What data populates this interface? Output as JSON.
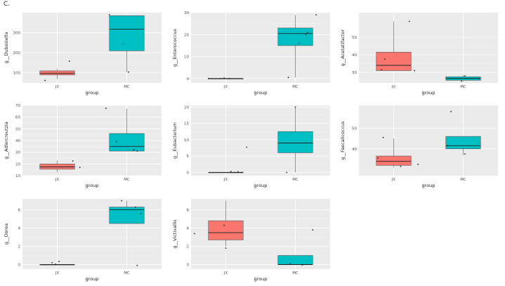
{
  "panel_label": "C.",
  "colors": {
    "JX": "#f8766d",
    "MC": "#00bfc4"
  },
  "chart_data": [
    {
      "type": "box",
      "title": "",
      "xlabel": "group",
      "ylabel": "g__Dubosiella",
      "categories": [
        "JX",
        "MC"
      ],
      "ylim": [
        50,
        400
      ],
      "yticks": [
        100,
        200,
        300
      ],
      "boxes": [
        {
          "group": "JX",
          "min": 70,
          "q1": 90,
          "median": 98,
          "q3": 110,
          "max": 120
        },
        {
          "group": "MC",
          "min": 105,
          "q1": 210,
          "median": 318,
          "q3": 385,
          "max": 385
        }
      ],
      "points": [
        {
          "group": "JX",
          "offset": -0.35,
          "y": 62
        },
        {
          "group": "JX",
          "offset": 0.35,
          "y": 158
        },
        {
          "group": "MC",
          "offset": -0.5,
          "y": 390
        },
        {
          "group": "MC",
          "offset": -0.1,
          "y": 245
        },
        {
          "group": "MC",
          "offset": 0.05,
          "y": 104
        }
      ]
    },
    {
      "type": "box",
      "title": "",
      "xlabel": "group",
      "ylabel": "g__Enterococcus",
      "categories": [
        "JX",
        "MC"
      ],
      "ylim": [
        -2,
        30
      ],
      "yticks": [
        0,
        10,
        20,
        30
      ],
      "boxes": [
        {
          "group": "JX",
          "min": 0,
          "q1": 0,
          "median": 0,
          "q3": 0,
          "max": 0
        },
        {
          "group": "MC",
          "min": 0.5,
          "q1": 15,
          "median": 20.5,
          "q3": 23,
          "max": 29
        }
      ],
      "points": [
        {
          "group": "JX",
          "offset": -0.5,
          "y": 0
        },
        {
          "group": "JX",
          "offset": -0.15,
          "y": 0
        },
        {
          "group": "JX",
          "offset": -0.05,
          "y": 0.2
        },
        {
          "group": "JX",
          "offset": 0.1,
          "y": 0
        },
        {
          "group": "MC",
          "offset": -0.2,
          "y": 0.5
        },
        {
          "group": "MC",
          "offset": 0.1,
          "y": 16
        },
        {
          "group": "MC",
          "offset": 0.3,
          "y": 20
        },
        {
          "group": "MC",
          "offset": 0.35,
          "y": 21
        },
        {
          "group": "MC",
          "offset": 0.6,
          "y": 29
        }
      ]
    },
    {
      "type": "box",
      "title": "",
      "xlabel": "group",
      "ylabel": "g__Acetatifactor",
      "categories": [
        "JX",
        "MC"
      ],
      "ylim": [
        24,
        64
      ],
      "yticks": [
        30,
        40,
        50
      ],
      "boxes": [
        {
          "group": "JX",
          "min": 31,
          "q1": 31,
          "median": 34,
          "q3": 41.5,
          "max": 59
        },
        {
          "group": "MC",
          "min": 25,
          "q1": 25.5,
          "median": 26.5,
          "q3": 27.5,
          "max": 28.5
        }
      ],
      "points": [
        {
          "group": "JX",
          "offset": -0.35,
          "y": 31.5
        },
        {
          "group": "JX",
          "offset": -0.25,
          "y": 37.5
        },
        {
          "group": "JX",
          "offset": 0.45,
          "y": 59
        },
        {
          "group": "JX",
          "offset": 0.6,
          "y": 31
        },
        {
          "group": "MC",
          "offset": -0.05,
          "y": 25
        },
        {
          "group": "MC",
          "offset": 0.05,
          "y": 28
        }
      ]
    },
    {
      "type": "box",
      "title": "",
      "xlabel": "group",
      "ylabel": "g__Adlercreutzia",
      "categories": [
        "JX",
        "MC"
      ],
      "ylim": [
        10,
        70
      ],
      "yticks": [
        10,
        20,
        30,
        40,
        50,
        60,
        70
      ],
      "boxes": [
        {
          "group": "JX",
          "min": 13,
          "q1": 15.5,
          "median": 17.5,
          "q3": 20,
          "max": 23
        },
        {
          "group": "MC",
          "min": 31,
          "q1": 31,
          "median": 35,
          "q3": 46,
          "max": 67
        }
      ],
      "points": [
        {
          "group": "JX",
          "offset": 0.45,
          "y": 22.5
        },
        {
          "group": "JX",
          "offset": 0.65,
          "y": 17
        },
        {
          "group": "MC",
          "offset": -0.6,
          "y": 67.5
        },
        {
          "group": "MC",
          "offset": -0.3,
          "y": 39
        },
        {
          "group": "MC",
          "offset": 0.2,
          "y": 32
        },
        {
          "group": "MC",
          "offset": 0.3,
          "y": 31
        }
      ]
    },
    {
      "type": "box",
      "title": "",
      "xlabel": "group",
      "ylabel": "g__Eubacterium",
      "categories": [
        "JX",
        "MC"
      ],
      "ylim": [
        -1,
        20.5
      ],
      "yticks": [
        0,
        5,
        10,
        15,
        20
      ],
      "boxes": [
        {
          "group": "JX",
          "min": 0,
          "q1": 0,
          "median": 0,
          "q3": 0,
          "max": 0
        },
        {
          "group": "MC",
          "min": 0,
          "q1": 6,
          "median": 9,
          "q3": 12.5,
          "max": 20
        }
      ],
      "points": [
        {
          "group": "JX",
          "offset": 0.15,
          "y": 0.3
        },
        {
          "group": "JX",
          "offset": 0.25,
          "y": 0
        },
        {
          "group": "JX",
          "offset": 0.35,
          "y": 0.2
        },
        {
          "group": "JX",
          "offset": 0.45,
          "y": 0
        },
        {
          "group": "JX",
          "offset": 0.6,
          "y": 7.7
        },
        {
          "group": "MC",
          "offset": -0.25,
          "y": 0
        },
        {
          "group": "MC",
          "offset": 0.0,
          "y": 20
        }
      ]
    },
    {
      "type": "box",
      "title": "",
      "xlabel": "group",
      "ylabel": "g__Faecalicoccus",
      "categories": [
        "JX",
        "MC"
      ],
      "ylim": [
        27,
        61
      ],
      "yticks": [
        40,
        50
      ],
      "boxes": [
        {
          "group": "JX",
          "min": 31,
          "q1": 32,
          "median": 34,
          "q3": 36.5,
          "max": 45
        },
        {
          "group": "MC",
          "min": 37,
          "q1": 40,
          "median": 41.5,
          "q3": 46,
          "max": 46
        }
      ],
      "points": [
        {
          "group": "JX",
          "offset": -0.45,
          "y": 35.5
        },
        {
          "group": "JX",
          "offset": -0.3,
          "y": 45.5
        },
        {
          "group": "JX",
          "offset": 0.2,
          "y": 31.5
        },
        {
          "group": "JX",
          "offset": 0.7,
          "y": 32.5
        },
        {
          "group": "MC",
          "offset": -0.35,
          "y": 58
        },
        {
          "group": "MC",
          "offset": -0.45,
          "y": 41.5
        },
        {
          "group": "MC",
          "offset": 0.05,
          "y": 37.5
        }
      ]
    },
    {
      "type": "box",
      "title": "",
      "xlabel": "group",
      "ylabel": "g__Dorea",
      "categories": [
        "JX",
        "MC"
      ],
      "ylim": [
        -0.5,
        7.2
      ],
      "yticks": [
        0,
        2,
        4,
        6
      ],
      "boxes": [
        {
          "group": "JX",
          "min": 0,
          "q1": 0,
          "median": 0,
          "q3": 0,
          "max": 0
        },
        {
          "group": "MC",
          "min": 4.5,
          "q1": 4.5,
          "median": 6,
          "q3": 6.3,
          "max": 7
        }
      ],
      "points": [
        {
          "group": "JX",
          "offset": -0.15,
          "y": 0.2
        },
        {
          "group": "JX",
          "offset": -0.05,
          "y": 0.05
        },
        {
          "group": "JX",
          "offset": 0.05,
          "y": 0.35
        },
        {
          "group": "MC",
          "offset": -0.15,
          "y": 7
        },
        {
          "group": "MC",
          "offset": 0.25,
          "y": 6.3
        },
        {
          "group": "MC",
          "offset": 0.4,
          "y": 5.6
        },
        {
          "group": "MC",
          "offset": 0.3,
          "y": -0.1
        }
      ]
    },
    {
      "type": "box",
      "title": "",
      "xlabel": "group",
      "ylabel": "g__Victivallis",
      "categories": [
        "JX",
        "MC"
      ],
      "ylim": [
        -0.5,
        7.2
      ],
      "yticks": [
        0,
        2,
        4,
        6
      ],
      "boxes": [
        {
          "group": "JX",
          "min": 2,
          "q1": 2.7,
          "median": 3.5,
          "q3": 4.8,
          "max": 7
        },
        {
          "group": "MC",
          "min": 0,
          "q1": 0,
          "median": 0,
          "q3": 1,
          "max": 1
        }
      ],
      "points": [
        {
          "group": "JX",
          "offset": -0.9,
          "y": 3.4
        },
        {
          "group": "JX",
          "offset": -0.05,
          "y": 4.3
        },
        {
          "group": "JX",
          "offset": 0.0,
          "y": 1.8
        },
        {
          "group": "MC",
          "offset": -0.15,
          "y": 0.1
        },
        {
          "group": "MC",
          "offset": 0.2,
          "y": -0.05
        },
        {
          "group": "MC",
          "offset": 0.5,
          "y": 3.8
        }
      ]
    }
  ]
}
